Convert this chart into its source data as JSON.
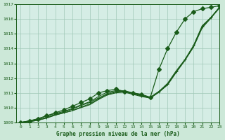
{
  "background_color": "#cce8d8",
  "plot_bg_color": "#d5ede5",
  "grid_color": "#a0c8b8",
  "line_color": "#1a5c1a",
  "xlabel": "Graphe pression niveau de la mer (hPa)",
  "xlim": [
    -0.5,
    23
  ],
  "ylim": [
    1009,
    1017
  ],
  "yticks": [
    1009,
    1010,
    1011,
    1012,
    1013,
    1014,
    1015,
    1016,
    1017
  ],
  "xticks": [
    0,
    1,
    2,
    3,
    4,
    5,
    6,
    7,
    8,
    9,
    10,
    11,
    12,
    13,
    14,
    15,
    16,
    17,
    18,
    19,
    20,
    21,
    22,
    23
  ],
  "series": [
    {
      "y": [
        1009.0,
        1009.05,
        1009.15,
        1009.3,
        1009.5,
        1009.65,
        1009.8,
        1010.0,
        1010.2,
        1010.55,
        1010.85,
        1011.0,
        1011.05,
        1010.9,
        1010.75,
        1010.65,
        1011.05,
        1011.55,
        1012.4,
        1013.2,
        1014.1,
        1015.4,
        1016.05,
        1016.75
      ],
      "marker": false,
      "lw": 0.8
    },
    {
      "y": [
        1009.0,
        1009.05,
        1009.15,
        1009.3,
        1009.5,
        1009.65,
        1009.8,
        1010.05,
        1010.25,
        1010.6,
        1010.9,
        1011.05,
        1011.1,
        1010.95,
        1010.8,
        1010.65,
        1011.05,
        1011.55,
        1012.4,
        1013.2,
        1014.15,
        1015.45,
        1016.1,
        1016.75
      ],
      "marker": false,
      "lw": 0.8
    },
    {
      "y": [
        1009.0,
        1009.1,
        1009.25,
        1009.45,
        1009.6,
        1009.75,
        1009.95,
        1010.2,
        1010.4,
        1010.75,
        1011.05,
        1011.15,
        1011.15,
        1011.0,
        1010.85,
        1010.7,
        1011.1,
        1011.65,
        1012.5,
        1013.25,
        1014.2,
        1015.55,
        1016.1,
        1016.8
      ],
      "marker": false,
      "lw": 0.8
    },
    {
      "y": [
        1009.0,
        1009.1,
        1009.2,
        1009.35,
        1009.55,
        1009.7,
        1009.9,
        1010.15,
        1010.35,
        1010.65,
        1010.95,
        1011.1,
        1011.1,
        1010.95,
        1010.8,
        1010.7,
        1011.1,
        1011.6,
        1012.45,
        1013.25,
        1014.2,
        1015.5,
        1016.1,
        1016.8
      ],
      "marker": true,
      "marker_style": "+",
      "lw": 0.8
    },
    {
      "y": [
        1009.0,
        1009.1,
        1009.25,
        1009.45,
        1009.65,
        1009.85,
        1010.1,
        1010.35,
        1010.6,
        1011.0,
        1011.15,
        1011.25,
        1011.1,
        1011.0,
        1010.9,
        1010.7,
        1012.6,
        1014.0,
        1015.1,
        1016.0,
        1016.5,
        1016.7,
        1016.8,
        1016.9
      ],
      "marker": true,
      "marker_style": "D",
      "lw": 0.9
    }
  ],
  "marker_size_plus": 3,
  "marker_size_diamond": 3
}
